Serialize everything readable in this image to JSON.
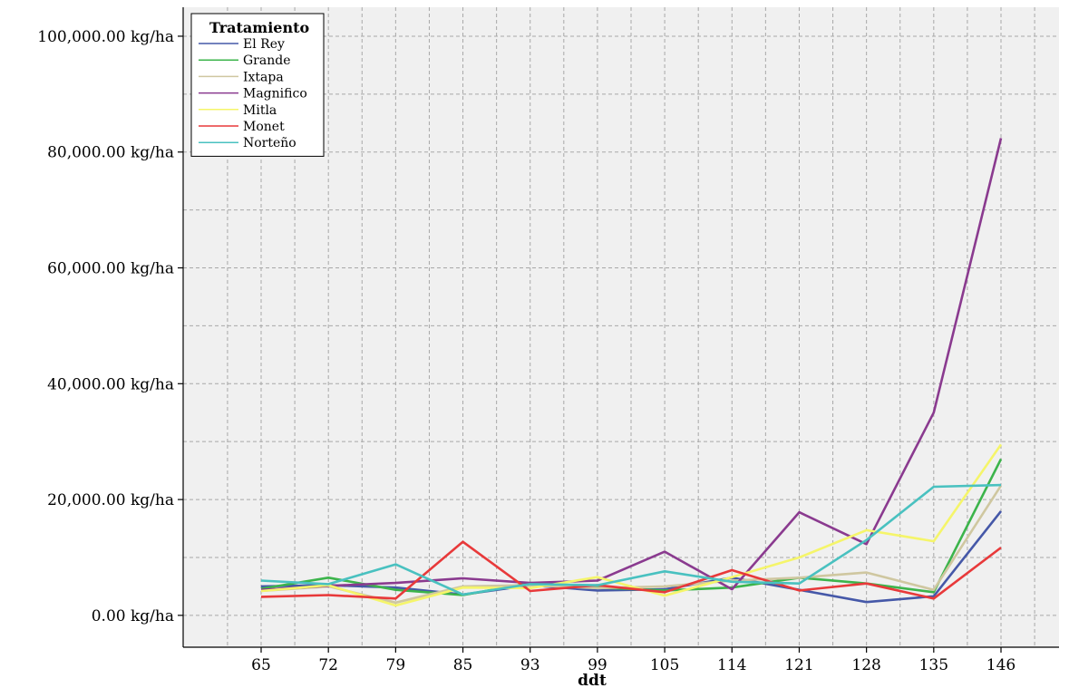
{
  "chart_data": {
    "type": "line",
    "title": "",
    "xlabel": "ddt",
    "ylabel": "",
    "x": [
      "65",
      "72",
      "79",
      "85",
      "93",
      "99",
      "105",
      "114",
      "121",
      "128",
      "135",
      "146"
    ],
    "ylim": [
      -5500,
      105000
    ],
    "y_ticks": [
      0,
      20000,
      40000,
      60000,
      80000,
      100000
    ],
    "y_tick_labels": [
      "0.00 kg/ha",
      "20,000.00 kg/ha",
      "40,000.00 kg/ha",
      "60,000.00 kg/ha",
      "80,000.00 kg/ha",
      "100,000.00 kg/ha"
    ],
    "grid": true,
    "legend": {
      "title": "Tratamiento",
      "placement": "top-left"
    },
    "series": [
      {
        "name": "El Rey",
        "color": "#4558a8",
        "values": [
          5000,
          5200,
          4800,
          3600,
          5200,
          4300,
          4500,
          6500,
          4400,
          2300,
          3300,
          18000
        ]
      },
      {
        "name": "Grande",
        "color": "#3cb44b",
        "values": [
          4600,
          6500,
          4400,
          3500,
          5600,
          4800,
          4300,
          4800,
          6500,
          5500,
          4000,
          27000
        ]
      },
      {
        "name": "Ixtapa",
        "color": "#cfc7a0",
        "values": [
          4200,
          5000,
          2200,
          5000,
          5200,
          4700,
          5000,
          6000,
          6500,
          7400,
          4400,
          22400
        ]
      },
      {
        "name": "Magnifico",
        "color": "#8a3a8f",
        "values": [
          4400,
          5100,
          5600,
          6400,
          5600,
          6000,
          11000,
          4500,
          17800,
          12300,
          35000,
          82400
        ]
      },
      {
        "name": "Mitla",
        "color": "#f5f56a",
        "values": [
          4200,
          5200,
          1700,
          4800,
          4700,
          6600,
          3400,
          6600,
          10000,
          14700,
          12800,
          29500
        ]
      },
      {
        "name": "Monet",
        "color": "#e8393a",
        "values": [
          3200,
          3500,
          2900,
          12700,
          4200,
          5200,
          4000,
          7800,
          4300,
          5500,
          2900,
          11700
        ]
      },
      {
        "name": "Norteño",
        "color": "#49c1c0",
        "values": [
          6000,
          5400,
          8800,
          3600,
          5400,
          5200,
          7600,
          5800,
          5500,
          13000,
          22200,
          22500
        ]
      }
    ]
  }
}
